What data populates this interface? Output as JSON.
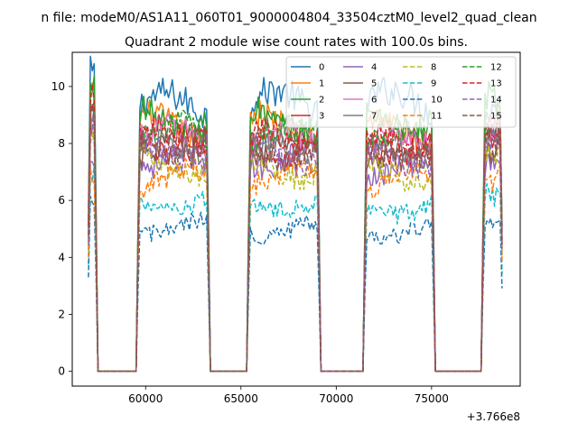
{
  "figure": {
    "suptitle": "n file: modeM0/AS1A11_060T01_9000004804_33504cztM0_level2_quad_clean",
    "title": "Quadrant 2 module wise count rates with 100.0s bins.",
    "offset_text": "+3.766e8"
  },
  "chart_data": {
    "type": "line",
    "title": "Quadrant 2 module wise count rates with 100.0s bins.",
    "xlabel": "",
    "ylabel": "",
    "x_offset": 376600000,
    "xlim": [
      56150,
      79650
    ],
    "ylim": [
      -0.52,
      11.2
    ],
    "xticks": [
      60000,
      65000,
      70000,
      75000
    ],
    "xtick_labels": [
      "60000",
      "65000",
      "70000",
      "75000"
    ],
    "yticks": [
      0,
      2,
      4,
      6,
      8,
      10
    ],
    "ytick_labels": [
      "0",
      "2",
      "4",
      "6",
      "8",
      "10"
    ],
    "grid": false,
    "legend_location": "top-right",
    "legend_columns": 4,
    "bin_width_s": 100,
    "x_start": 57000,
    "x_end": 78700,
    "on_intervals": [
      [
        57000,
        57400
      ],
      [
        59600,
        63300
      ],
      [
        65400,
        69100
      ],
      [
        71500,
        75100
      ],
      [
        77700,
        78700
      ]
    ],
    "series": [
      {
        "name": "0",
        "color": "#1f77b4",
        "dash": "solid",
        "levels": [
          10.4,
          9.3,
          9.4,
          9.4,
          9.1
        ]
      },
      {
        "name": "1",
        "color": "#ff7f0e",
        "dash": "solid",
        "levels": [
          9.2,
          8.6,
          8.6,
          8.5,
          8.9
        ]
      },
      {
        "name": "2",
        "color": "#2ca02c",
        "dash": "solid",
        "levels": [
          9.6,
          8.9,
          8.9,
          8.9,
          9.3
        ]
      },
      {
        "name": "3",
        "color": "#d62728",
        "dash": "solid",
        "levels": [
          9.1,
          8.0,
          7.9,
          7.8,
          8.2
        ]
      },
      {
        "name": "4",
        "color": "#9467bd",
        "dash": "solid",
        "levels": [
          8.0,
          7.6,
          7.5,
          7.3,
          7.6
        ]
      },
      {
        "name": "5",
        "color": "#8c564b",
        "dash": "solid",
        "levels": [
          8.6,
          7.9,
          7.8,
          7.7,
          8.0
        ]
      },
      {
        "name": "6",
        "color": "#e377c2",
        "dash": "solid",
        "levels": [
          9.0,
          8.2,
          8.1,
          8.0,
          8.4
        ]
      },
      {
        "name": "7",
        "color": "#7f7f7f",
        "dash": "solid",
        "levels": [
          8.5,
          7.8,
          7.7,
          7.6,
          7.9
        ]
      },
      {
        "name": "8",
        "color": "#bcbd22",
        "dash": "dashed",
        "levels": [
          7.7,
          7.2,
          7.1,
          7.0,
          7.4
        ]
      },
      {
        "name": "9",
        "color": "#17becf",
        "dash": "dashed",
        "levels": [
          6.8,
          5.9,
          5.9,
          5.8,
          6.2
        ]
      },
      {
        "name": "10",
        "color": "#1f77b4",
        "dash": "dashed",
        "levels": [
          6.0,
          5.1,
          5.0,
          4.9,
          5.3
        ]
      },
      {
        "name": "11",
        "color": "#ff7f0e",
        "dash": "dashed",
        "levels": [
          7.3,
          6.8,
          6.9,
          6.7,
          7.0
        ]
      },
      {
        "name": "12",
        "color": "#2ca02c",
        "dash": "dashed",
        "levels": [
          9.3,
          8.3,
          8.2,
          8.1,
          8.5
        ]
      },
      {
        "name": "13",
        "color": "#d62728",
        "dash": "dashed",
        "levels": [
          9.3,
          8.1,
          8.0,
          7.9,
          8.3
        ]
      },
      {
        "name": "14",
        "color": "#9467bd",
        "dash": "dashed",
        "levels": [
          8.2,
          7.7,
          7.6,
          7.5,
          7.8
        ]
      },
      {
        "name": "15",
        "color": "#8c564b",
        "dash": "dashed",
        "levels": [
          8.7,
          7.9,
          7.8,
          7.8,
          8.1
        ]
      }
    ]
  }
}
